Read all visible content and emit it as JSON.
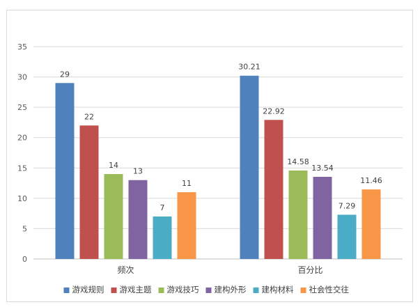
{
  "chart_data": {
    "type": "bar",
    "categories": [
      "频次",
      "百分比"
    ],
    "series": [
      {
        "name": "游戏规则",
        "color": "#4f81bd",
        "values": [
          29,
          30.21
        ],
        "labels": [
          "29",
          "30.21"
        ]
      },
      {
        "name": "游戏主题",
        "color": "#c0504d",
        "values": [
          22,
          22.92
        ],
        "labels": [
          "22",
          "22.92"
        ]
      },
      {
        "name": "游戏技巧",
        "color": "#9bbb59",
        "values": [
          14,
          14.58
        ],
        "labels": [
          "14",
          "14.58"
        ]
      },
      {
        "name": "建构外形",
        "color": "#8064a2",
        "values": [
          13,
          13.54
        ],
        "labels": [
          "13",
          "13.54"
        ]
      },
      {
        "name": "建构材料",
        "color": "#4bacc6",
        "values": [
          7,
          7.29
        ],
        "labels": [
          "7",
          "7.29"
        ]
      },
      {
        "name": "社会性交往",
        "color": "#f79646",
        "values": [
          11,
          11.46
        ],
        "labels": [
          "11",
          "11.46"
        ]
      }
    ],
    "ylim": [
      0,
      35
    ],
    "yticks": [
      "0",
      "5",
      "10",
      "15",
      "20",
      "25",
      "30",
      "35"
    ],
    "grid": true,
    "legend_position": "bottom"
  }
}
